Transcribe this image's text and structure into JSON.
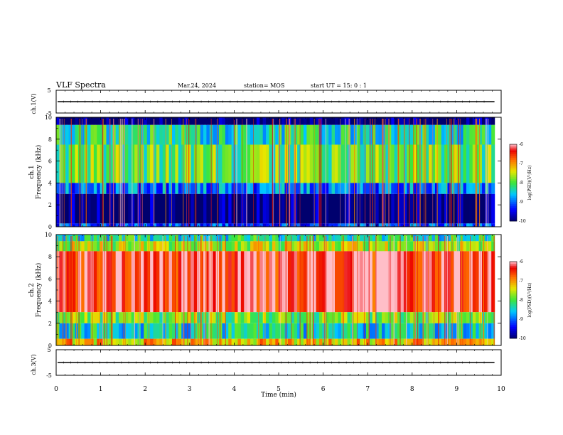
{
  "header": {
    "title": "VLF Spectra",
    "date": "Mar.24, 2024",
    "station": "station= MOS",
    "start": "start  UT =  15: 0  : 1"
  },
  "chart_data": [
    {
      "type": "line",
      "id": "ch1-waveform",
      "ylabel": "ch.1(V)",
      "ylim": [
        -5,
        5
      ],
      "yticks": [
        "5",
        "-5"
      ],
      "xlim": [
        0,
        10
      ],
      "series": [
        {
          "values": [
            0,
            0
          ]
        }
      ]
    },
    {
      "type": "heatmap",
      "id": "ch1-spectrogram",
      "ylabel_channel": "ch.1",
      "ylabel": "Frequency (kHz)",
      "ylim": [
        0,
        10
      ],
      "yticks": [
        "0",
        "2",
        "4",
        "6",
        "8",
        "10"
      ],
      "xlim": [
        0,
        9.85
      ],
      "colorbar": {
        "label": "log(PSD)(V²/Hz)",
        "range": [
          -10,
          -6
        ],
        "ticks": [
          "-6",
          "-7",
          "-8",
          "-9",
          "-10"
        ]
      },
      "bands": [
        {
          "from": 9.3,
          "to": 10.0,
          "level": -10
        },
        {
          "from": 7.5,
          "to": 9.3,
          "level": -8.3
        },
        {
          "from": 4.0,
          "to": 7.5,
          "level": -7.9
        },
        {
          "from": 3.0,
          "to": 4.0,
          "level": -8.9
        },
        {
          "from": 0.3,
          "to": 3.0,
          "level": -10
        },
        {
          "from": 0.0,
          "to": 0.3,
          "level": -9.2
        }
      ]
    },
    {
      "type": "heatmap",
      "id": "ch2-spectrogram",
      "ylabel_channel": "ch.2",
      "ylabel": "Frequency (kHz)",
      "ylim": [
        0,
        10
      ],
      "yticks": [
        "0",
        "2",
        "4",
        "6",
        "8",
        "10"
      ],
      "xlim": [
        0,
        9.85
      ],
      "colorbar": {
        "label": "log(PSD)(V²/Hz)",
        "range": [
          -10,
          -6
        ],
        "ticks": [
          "-6",
          "-7",
          "-8",
          "-9",
          "-10"
        ]
      },
      "bands": [
        {
          "from": 9.4,
          "to": 10.0,
          "level": -8.3
        },
        {
          "from": 8.5,
          "to": 9.4,
          "level": -7.6
        },
        {
          "from": 3.0,
          "to": 8.5,
          "level": -6.3
        },
        {
          "from": 2.0,
          "to": 3.0,
          "level": -7.8
        },
        {
          "from": 0.6,
          "to": 2.0,
          "level": -8.4
        },
        {
          "from": 0.0,
          "to": 0.6,
          "level": -7.2
        }
      ]
    },
    {
      "type": "line",
      "id": "ch3-waveform",
      "ylabel": "ch.3(V)",
      "ylim": [
        -5,
        5
      ],
      "yticks": [
        "5",
        "-5"
      ],
      "xlim": [
        0,
        10
      ],
      "xlabel": "Time (min)",
      "xticks": [
        "0",
        "1",
        "2",
        "3",
        "4",
        "5",
        "6",
        "7",
        "8",
        "9",
        "10"
      ],
      "series": [
        {
          "values": [
            0,
            0
          ]
        }
      ]
    }
  ]
}
